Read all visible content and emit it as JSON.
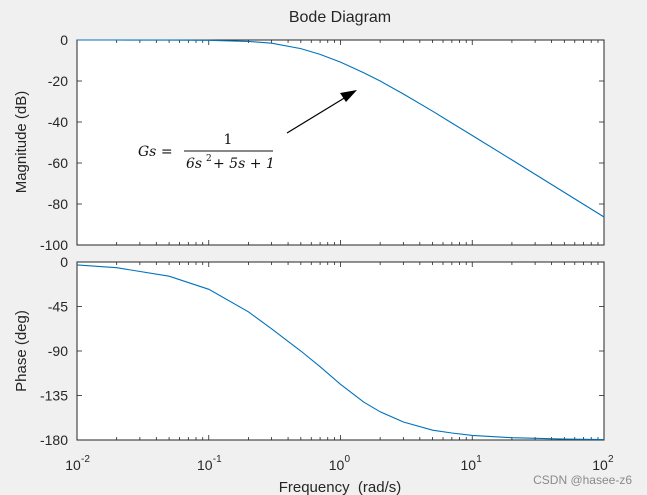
{
  "chart_data": [
    {
      "type": "line",
      "title": "Bode Diagram",
      "ylabel": "Magnitude (dB)",
      "xscale": "log",
      "xlim": [
        0.01,
        100
      ],
      "ylim": [
        -100,
        0
      ],
      "yticks": [
        "0",
        "-20",
        "-40",
        "-60",
        "-80",
        "-100"
      ],
      "series": [
        {
          "color": "#0072bd",
          "x": [
            0.01,
            0.02,
            0.05,
            0.1,
            0.2,
            0.3,
            0.5,
            0.7,
            1,
            1.5,
            2,
            3,
            5,
            7,
            10,
            20,
            50,
            100
          ],
          "y": [
            0.0,
            -0.01,
            -0.05,
            -0.17,
            -0.68,
            -1.56,
            -4.2,
            -7.02,
            -10.79,
            -15.97,
            -20.0,
            -26.32,
            -34.75,
            -40.48,
            -46.58,
            -58.47,
            -74.35,
            -86.34
          ]
        }
      ],
      "annotation": {
        "lhs": "Gs =",
        "numerator": "1",
        "denominator": {
          "a": "6s",
          "power": "2",
          "b": "+ 5s + 1"
        }
      }
    },
    {
      "type": "line",
      "xlabel": "Frequency  (rad/s)",
      "ylabel": "Phase (deg)",
      "xscale": "log",
      "xlim": [
        0.01,
        100
      ],
      "ylim": [
        -180,
        0
      ],
      "yticks": [
        "0",
        "-45",
        "-90",
        "-135",
        "-180"
      ],
      "xticks": [
        {
          "base": "10",
          "exp": "-2"
        },
        {
          "base": "10",
          "exp": "-1"
        },
        {
          "base": "10",
          "exp": "0"
        },
        {
          "base": "10",
          "exp": "1"
        },
        {
          "base": "10",
          "exp": "2"
        }
      ],
      "series": [
        {
          "color": "#0072bd",
          "x": [
            0.01,
            0.02,
            0.05,
            0.1,
            0.2,
            0.3,
            0.5,
            0.7,
            1,
            1.5,
            2,
            3,
            5,
            7,
            10,
            20,
            50,
            100
          ],
          "y": [
            -2.9,
            -5.8,
            -14.4,
            -27.6,
            -50.4,
            -67.6,
            -90.0,
            -105.9,
            -123.7,
            -141.7,
            -151.5,
            -161.8,
            -170.1,
            -172.9,
            -175.3,
            -177.7,
            -179.1,
            -179.5
          ]
        }
      ]
    }
  ],
  "watermark": "CSDN @hasee-z6"
}
